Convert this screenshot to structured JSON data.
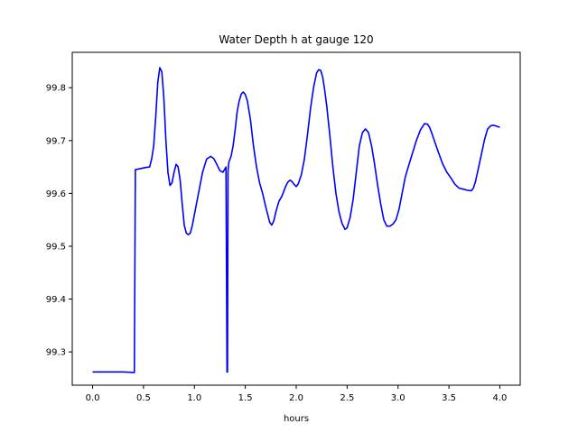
{
  "chart_data": {
    "type": "line",
    "title": "Water Depth h at gauge 120",
    "xlabel": "hours",
    "ylabel": "",
    "xlim": [
      -0.2,
      4.2
    ],
    "ylim": [
      99.237,
      99.867
    ],
    "xticks": [
      0.0,
      0.5,
      1.0,
      1.5,
      2.0,
      2.5,
      3.0,
      3.5,
      4.0
    ],
    "xtick_labels": [
      "0.0",
      "0.5",
      "1.0",
      "1.5",
      "2.0",
      "2.5",
      "3.0",
      "3.5",
      "4.0"
    ],
    "yticks": [
      99.3,
      99.4,
      99.5,
      99.6,
      99.7,
      99.8
    ],
    "ytick_labels": [
      "99.3",
      "99.4",
      "99.5",
      "99.6",
      "99.7",
      "99.8"
    ],
    "grid": false,
    "series": [
      {
        "color": "#0000ff",
        "x": [
          0.0,
          0.2,
          0.3,
          0.41,
          0.42,
          0.52,
          0.56,
          0.58,
          0.6,
          0.62,
          0.64,
          0.66,
          0.68,
          0.7,
          0.72,
          0.74,
          0.76,
          0.78,
          0.8,
          0.82,
          0.84,
          0.86,
          0.88,
          0.9,
          0.92,
          0.94,
          0.96,
          0.98,
          1.0,
          1.04,
          1.08,
          1.12,
          1.16,
          1.19,
          1.22,
          1.25,
          1.28,
          1.31,
          1.32,
          1.325,
          1.33,
          1.335,
          1.34,
          1.36,
          1.38,
          1.4,
          1.42,
          1.44,
          1.46,
          1.48,
          1.5,
          1.52,
          1.55,
          1.58,
          1.61,
          1.64,
          1.67,
          1.7,
          1.72,
          1.74,
          1.76,
          1.78,
          1.8,
          1.83,
          1.86,
          1.88,
          1.9,
          1.92,
          1.94,
          1.96,
          1.98,
          2.0,
          2.02,
          2.05,
          2.08,
          2.11,
          2.14,
          2.17,
          2.2,
          2.22,
          2.24,
          2.26,
          2.28,
          2.3,
          2.33,
          2.36,
          2.39,
          2.42,
          2.45,
          2.48,
          2.5,
          2.53,
          2.56,
          2.59,
          2.62,
          2.65,
          2.68,
          2.71,
          2.74,
          2.77,
          2.8,
          2.83,
          2.86,
          2.89,
          2.92,
          2.95,
          2.98,
          3.01,
          3.04,
          3.07,
          3.1,
          3.14,
          3.18,
          3.22,
          3.26,
          3.29,
          3.31,
          3.33,
          3.36,
          3.4,
          3.44,
          3.48,
          3.52,
          3.56,
          3.6,
          3.64,
          3.68,
          3.72,
          3.74,
          3.76,
          3.79,
          3.82,
          3.85,
          3.88,
          3.91,
          3.94,
          3.97,
          4.0
        ],
        "values": [
          99.262,
          99.262,
          99.262,
          99.261,
          99.645,
          99.649,
          99.65,
          99.665,
          99.69,
          99.745,
          99.81,
          99.838,
          99.83,
          99.78,
          99.7,
          99.64,
          99.615,
          99.62,
          99.64,
          99.655,
          99.65,
          99.625,
          99.58,
          99.54,
          99.525,
          99.522,
          99.525,
          99.54,
          99.56,
          99.6,
          99.64,
          99.665,
          99.67,
          99.666,
          99.655,
          99.643,
          99.64,
          99.65,
          99.262,
          99.262,
          99.64,
          99.655,
          99.66,
          99.67,
          99.69,
          99.72,
          99.755,
          99.775,
          99.788,
          99.792,
          99.787,
          99.775,
          99.74,
          99.69,
          99.65,
          99.62,
          99.6,
          99.575,
          99.56,
          99.545,
          99.54,
          99.548,
          99.565,
          99.585,
          99.595,
          99.605,
          99.615,
          99.622,
          99.625,
          99.622,
          99.617,
          99.613,
          99.618,
          99.635,
          99.665,
          99.71,
          99.76,
          99.8,
          99.828,
          99.834,
          99.833,
          99.82,
          99.795,
          99.765,
          99.71,
          99.65,
          99.6,
          99.565,
          99.543,
          99.532,
          99.535,
          99.555,
          99.59,
          99.64,
          99.69,
          99.715,
          99.722,
          99.715,
          99.69,
          99.655,
          99.615,
          99.58,
          99.55,
          99.538,
          99.538,
          99.542,
          99.55,
          99.57,
          99.6,
          99.63,
          99.65,
          99.675,
          99.7,
          99.72,
          99.732,
          99.731,
          99.725,
          99.715,
          99.698,
          99.676,
          99.655,
          99.64,
          99.629,
          99.617,
          99.61,
          99.608,
          99.606,
          99.605,
          99.61,
          99.622,
          99.648,
          99.675,
          99.702,
          99.722,
          99.728,
          99.729,
          99.727,
          99.725
        ]
      }
    ]
  }
}
